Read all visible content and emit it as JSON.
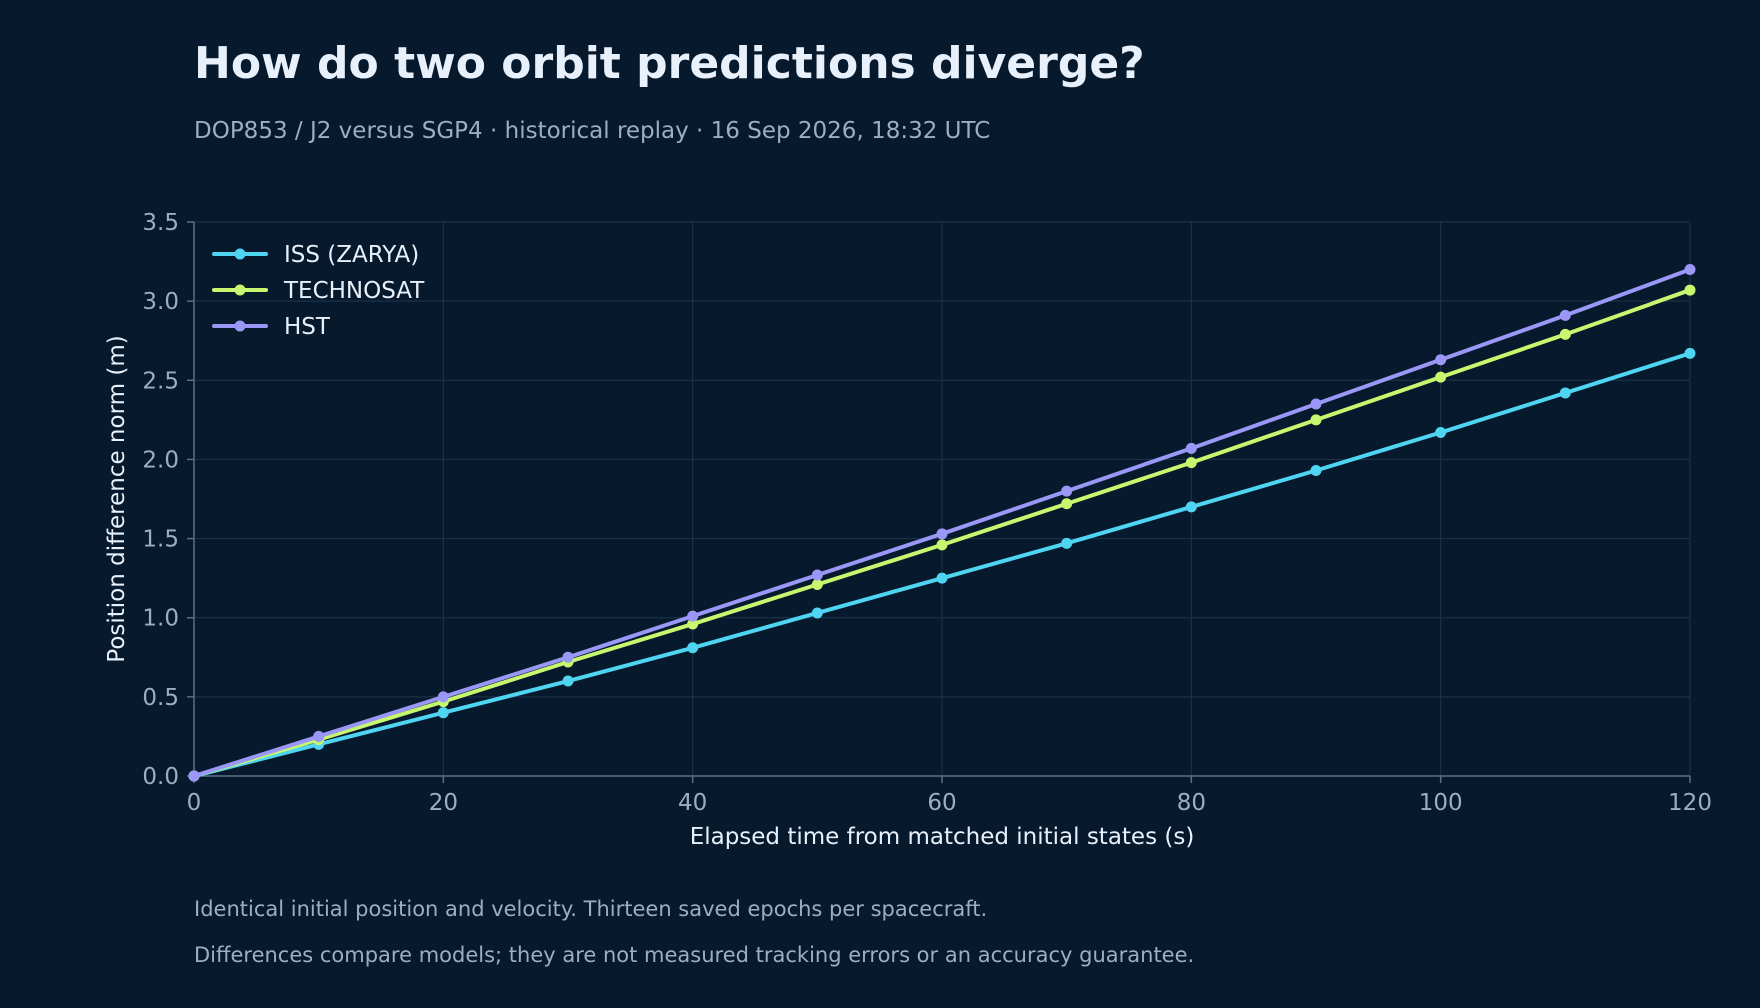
{
  "header": {
    "title": "How do two orbit predictions diverge?",
    "subtitle": "DOP853 / J2 versus SGP4 · historical replay · 16 Sep 2026, 18:32 UTC"
  },
  "notes": [
    "Identical initial position and velocity. Thirteen saved epochs per spacecraft.",
    "Differences compare models; they are not measured tracking errors or an accuracy guarantee."
  ],
  "colors": {
    "background": "#07192c",
    "grid": "#1b3148",
    "axis": "#5a7088"
  },
  "chart_data": {
    "type": "line",
    "title": "How do two orbit predictions diverge?",
    "subtitle": "DOP853 / J2 versus SGP4 · historical replay · 16 Sep 2026, 18:32 UTC",
    "xlabel": "Elapsed time from matched initial states (s)",
    "ylabel": "Position difference norm (m)",
    "xlim": [
      0,
      120
    ],
    "ylim": [
      0,
      3.5
    ],
    "xticks": [
      0,
      20,
      40,
      60,
      80,
      100,
      120
    ],
    "yticks": [
      0.0,
      0.5,
      1.0,
      1.5,
      2.0,
      2.5,
      3.0,
      3.5
    ],
    "xtick_labels": [
      "0",
      "20",
      "40",
      "60",
      "80",
      "100",
      "120"
    ],
    "ytick_labels": [
      "0.0",
      "0.5",
      "1.0",
      "1.5",
      "2.0",
      "2.5",
      "3.0",
      "3.5"
    ],
    "grid": true,
    "legend_position": "top-left",
    "x": [
      0,
      10,
      20,
      30,
      40,
      50,
      60,
      70,
      80,
      90,
      100,
      110,
      120
    ],
    "series": [
      {
        "name": "ISS (ZARYA)",
        "color": "#4fd5f2",
        "values": [
          0.0,
          0.2,
          0.4,
          0.6,
          0.81,
          1.03,
          1.25,
          1.47,
          1.7,
          1.93,
          2.17,
          2.42,
          2.67
        ]
      },
      {
        "name": "TECHNOSAT",
        "color": "#c6f76f",
        "values": [
          0.0,
          0.23,
          0.47,
          0.72,
          0.96,
          1.21,
          1.46,
          1.72,
          1.98,
          2.25,
          2.52,
          2.79,
          3.07
        ]
      },
      {
        "name": "HST",
        "color": "#9b97f7",
        "values": [
          0.0,
          0.25,
          0.5,
          0.75,
          1.01,
          1.27,
          1.53,
          1.8,
          2.07,
          2.35,
          2.63,
          2.91,
          3.2
        ]
      }
    ]
  }
}
